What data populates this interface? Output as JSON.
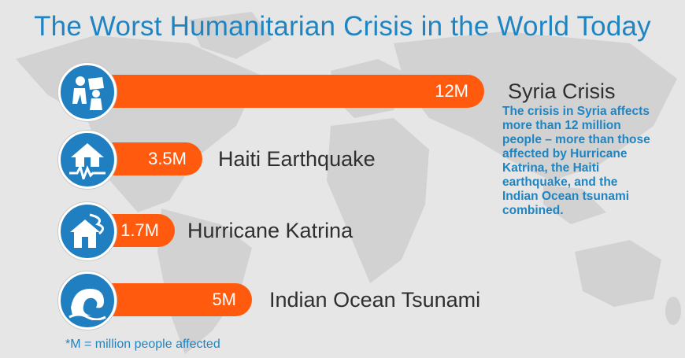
{
  "title": "The Worst Humanitarian Crisis in the World Today",
  "note": "The crisis in Syria affects more than 12 million people – more than those affected by Hurricane Katrina, the Haiti earthquake, and the Indian Ocean tsunami combined.",
  "footnote": "*M = million people affected",
  "colors": {
    "bar": "#ff5a0e",
    "icon_bg": "#1f7fc0",
    "text_blue": "#1f85c2",
    "label": "#2f2f2f",
    "map": "#d2d2d2"
  },
  "chart_data": {
    "type": "bar",
    "orientation": "horizontal",
    "unit": "M",
    "categories": [
      "Syria Crisis",
      "Haiti Earthquake",
      "Hurricane Katrina",
      "Indian Ocean Tsunami"
    ],
    "values": [
      12,
      3.5,
      1.7,
      5
    ],
    "value_labels": [
      "12M",
      "3.5M",
      "1.7M",
      "5M"
    ],
    "icons": [
      "displaced-people-icon",
      "earthquake-house-icon",
      "hurricane-house-icon",
      "tsunami-wave-icon"
    ]
  }
}
